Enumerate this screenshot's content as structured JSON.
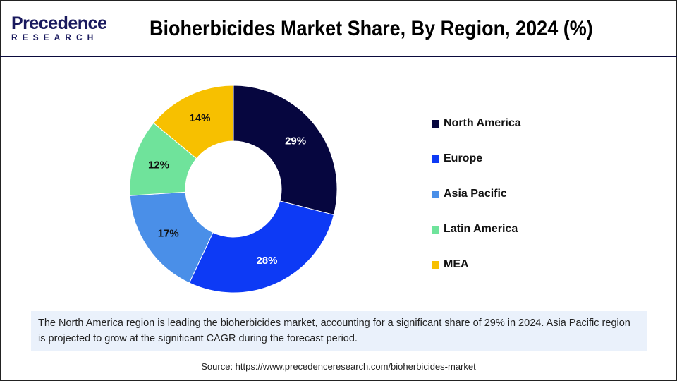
{
  "header": {
    "logo_line1": "Precedence",
    "logo_line2": "RESEARCH",
    "title": "Bioherbicides Market Share, By Region, 2024 (%)"
  },
  "chart_data": {
    "type": "pie",
    "variant": "donut",
    "title": "Bioherbicides Market Share, By Region, 2024 (%)",
    "categories": [
      "North America",
      "Europe",
      "Asia Pacific",
      "Latin America",
      "MEA"
    ],
    "values": [
      29,
      28,
      17,
      12,
      14
    ],
    "labels": [
      "29%",
      "28%",
      "17%",
      "12%",
      "14%"
    ],
    "colors": [
      "#06063f",
      "#0d3af5",
      "#4a8fe8",
      "#6fe39b",
      "#f7c000"
    ],
    "legend_position": "right"
  },
  "note": "The North America region is leading the bioherbicides market, accounting for a significant share of 29% in 2024. Asia Pacific region is projected to grow at the significant CAGR during the forecast period.",
  "source": "Source: https://www.precedenceresearch.com/bioherbicides-market"
}
